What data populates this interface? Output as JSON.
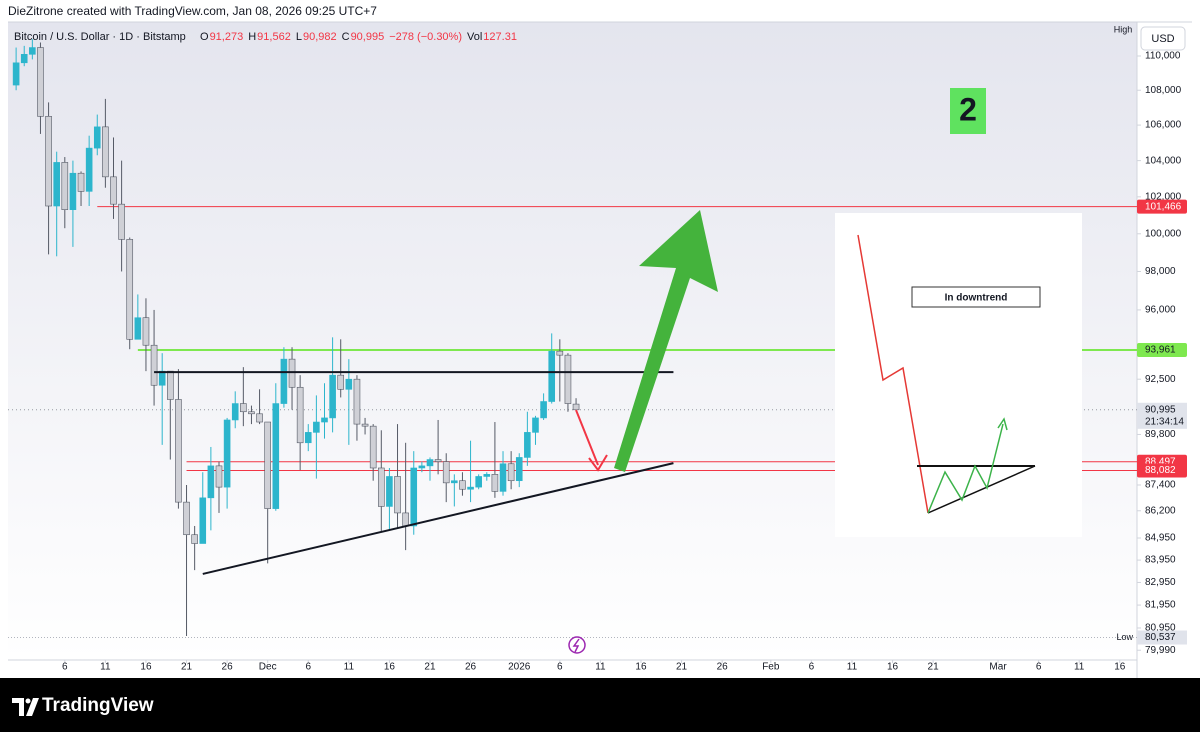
{
  "chart_data": {
    "type": "candlestick",
    "title": "DieZitrone created with TradingView.com, Jan 08, 2026 09:25 UTC+7",
    "symbol": "Bitcoin / U.S. Dollar · 1D · Bitstamp",
    "legend_values": [
      {
        "label": "O",
        "text": "91,273"
      },
      {
        "label": "H",
        "text": "91,562"
      },
      {
        "label": "L",
        "text": "90,982"
      },
      {
        "label": "C",
        "text": "90,995"
      },
      {
        "label": "",
        "text": "−278 (−0.30%)"
      },
      {
        "label": "Vol",
        "text": "127.31"
      }
    ],
    "currency": "USD",
    "high_label": "High",
    "low_marker": {
      "label": "Low",
      "value": 80537,
      "value_label": "80,537"
    },
    "log_scale": true,
    "grid": false,
    "up_color": "#2cb5cc",
    "down_color": "#cfd0d6",
    "x": [
      "2025-10-31",
      "2025-11-01",
      "2025-11-02",
      "2025-11-03",
      "2025-11-04",
      "2025-11-05",
      "2025-11-06",
      "2025-11-07",
      "2025-11-08",
      "2025-11-09",
      "2025-11-10",
      "2025-11-11",
      "2025-11-12",
      "2025-11-13",
      "2025-11-14",
      "2025-11-15",
      "2025-11-16",
      "2025-11-17",
      "2025-11-18",
      "2025-11-19",
      "2025-11-20",
      "2025-11-21",
      "2025-11-22",
      "2025-11-23",
      "2025-11-24",
      "2025-11-25",
      "2025-11-26",
      "2025-11-27",
      "2025-11-28",
      "2025-11-29",
      "2025-11-30",
      "2025-12-01",
      "2025-12-02",
      "2025-12-03",
      "2025-12-04",
      "2025-12-05",
      "2025-12-06",
      "2025-12-07",
      "2025-12-08",
      "2025-12-09",
      "2025-12-10",
      "2025-12-11",
      "2025-12-12",
      "2025-12-13",
      "2025-12-14",
      "2025-12-15",
      "2025-12-16",
      "2025-12-17",
      "2025-12-18",
      "2025-12-19",
      "2025-12-20",
      "2025-12-21",
      "2025-12-22",
      "2025-12-23",
      "2025-12-24",
      "2025-12-25",
      "2025-12-26",
      "2025-12-27",
      "2025-12-28",
      "2025-12-29",
      "2025-12-30",
      "2025-12-31",
      "2026-01-01",
      "2026-01-02",
      "2026-01-03",
      "2026-01-04",
      "2026-01-05",
      "2026-01-06",
      "2026-01-07",
      "2026-01-08"
    ],
    "open": [
      108300,
      109600,
      110100,
      110500,
      106500,
      101500,
      103900,
      101300,
      103300,
      102300,
      104700,
      105900,
      103100,
      101600,
      99700,
      94500,
      95600,
      94200,
      92200,
      92900,
      91500,
      86600,
      85100,
      84700,
      86800,
      88300,
      87300,
      90500,
      91300,
      90900,
      90800,
      90400,
      86300,
      91300,
      93500,
      92100,
      89400,
      89900,
      90400,
      90600,
      92700,
      92000,
      92500,
      90300,
      90200,
      88200,
      86400,
      87800,
      86100,
      85500,
      88200,
      88300,
      88600,
      88500,
      87500,
      87600,
      87200,
      87300,
      87800,
      87900,
      87100,
      88400,
      87600,
      88700,
      89900,
      90600,
      91400,
      93900,
      93700,
      91273
    ],
    "high": [
      110500,
      110600,
      111000,
      110800,
      107300,
      104500,
      104200,
      104000,
      103400,
      105400,
      106600,
      107500,
      105300,
      104000,
      99800,
      96800,
      96600,
      96000,
      93800,
      92900,
      93000,
      87400,
      85500,
      88000,
      89200,
      88500,
      90600,
      91900,
      93100,
      91200,
      92000,
      90400,
      92300,
      94100,
      94100,
      92700,
      90300,
      91700,
      92300,
      94600,
      94500,
      93500,
      92700,
      90600,
      90300,
      90000,
      88200,
      90300,
      89400,
      89000,
      88500,
      88700,
      90500,
      88900,
      87900,
      88000,
      89500,
      87900,
      88000,
      90400,
      89000,
      89000,
      88900,
      90900,
      90700,
      91800,
      94800,
      94500,
      93800,
      91562
    ],
    "low": [
      108000,
      109400,
      109800,
      105500,
      98900,
      98800,
      100300,
      99300,
      101500,
      101500,
      104300,
      102500,
      100800,
      98000,
      94000,
      94600,
      92900,
      91200,
      89300,
      88600,
      86300,
      80600,
      83500,
      84700,
      85300,
      86100,
      86300,
      90100,
      90200,
      90300,
      90300,
      83800,
      86200,
      91100,
      91000,
      88100,
      89000,
      87700,
      89600,
      89900,
      91600,
      89300,
      89500,
      89800,
      87600,
      85200,
      85300,
      85400,
      84400,
      85100,
      88000,
      87600,
      87900,
      86600,
      86400,
      86900,
      86600,
      87200,
      87600,
      86800,
      86900,
      87200,
      87300,
      88300,
      89300,
      90500,
      91300,
      91400,
      90900,
      90982
    ],
    "close": [
      109600,
      110100,
      110500,
      106500,
      101500,
      103900,
      101300,
      103300,
      102300,
      104700,
      105900,
      103100,
      101600,
      99700,
      94500,
      95600,
      94200,
      92200,
      92900,
      91500,
      86600,
      85100,
      84700,
      86800,
      88300,
      87300,
      90500,
      91300,
      90900,
      90800,
      90400,
      86300,
      91300,
      93500,
      92100,
      89400,
      89900,
      90400,
      90600,
      92700,
      92000,
      92500,
      90300,
      90200,
      88200,
      86400,
      87800,
      86100,
      85500,
      88200,
      88300,
      88600,
      88500,
      87500,
      87600,
      87200,
      87300,
      87800,
      87900,
      87100,
      88400,
      87600,
      88700,
      89900,
      90600,
      91400,
      93900,
      93700,
      91300,
      90995
    ],
    "xlim": [
      "2025-10-30",
      "2026-03-18"
    ],
    "xticks": [
      {
        "value": "2025-11-06",
        "label": "6"
      },
      {
        "value": "2025-11-11",
        "label": "11"
      },
      {
        "value": "2025-11-16",
        "label": "16"
      },
      {
        "value": "2025-11-21",
        "label": "21"
      },
      {
        "value": "2025-11-26",
        "label": "26"
      },
      {
        "value": "2025-12-01",
        "label": "Dec"
      },
      {
        "value": "2025-12-06",
        "label": "6"
      },
      {
        "value": "2025-12-11",
        "label": "11"
      },
      {
        "value": "2025-12-16",
        "label": "16"
      },
      {
        "value": "2025-12-21",
        "label": "21"
      },
      {
        "value": "2025-12-26",
        "label": "26"
      },
      {
        "value": "2026-01-01",
        "label": "2026"
      },
      {
        "value": "2026-01-06",
        "label": "6"
      },
      {
        "value": "2026-01-11",
        "label": "11"
      },
      {
        "value": "2026-01-16",
        "label": "16"
      },
      {
        "value": "2026-01-21",
        "label": "21"
      },
      {
        "value": "2026-01-26",
        "label": "26"
      },
      {
        "value": "2026-02-01",
        "label": "Feb"
      },
      {
        "value": "2026-02-06",
        "label": "6"
      },
      {
        "value": "2026-02-11",
        "label": "11"
      },
      {
        "value": "2026-02-16",
        "label": "16"
      },
      {
        "value": "2026-02-21",
        "label": "21"
      },
      {
        "value": "2026-03-01",
        "label": "Mar"
      },
      {
        "value": "2026-03-06",
        "label": "6"
      },
      {
        "value": "2026-03-11",
        "label": "11"
      },
      {
        "value": "2026-03-16",
        "label": "16"
      }
    ],
    "ylim": [
      79572,
      112024
    ],
    "yticks": [
      {
        "value": 110000,
        "label": "110,000"
      },
      {
        "value": 108000,
        "label": "108,000"
      },
      {
        "value": 106000,
        "label": "106,000"
      },
      {
        "value": 104000,
        "label": "104,000"
      },
      {
        "value": 102000,
        "label": "102,000"
      },
      {
        "value": 100000,
        "label": "100,000"
      },
      {
        "value": 98000,
        "label": "98,000"
      },
      {
        "value": 96000,
        "label": "96,000"
      },
      {
        "value": 92500,
        "label": "92,500"
      },
      {
        "value": 89800,
        "label": "89,800"
      },
      {
        "value": 87400,
        "label": "87,400"
      },
      {
        "value": 86200,
        "label": "86,200"
      },
      {
        "value": 84950,
        "label": "84,950"
      },
      {
        "value": 83950,
        "label": "83,950"
      },
      {
        "value": 82950,
        "label": "82,950"
      },
      {
        "value": 81950,
        "label": "81,950"
      },
      {
        "value": 80950,
        "label": "80,950"
      },
      {
        "value": 79990,
        "label": "79,990"
      }
    ],
    "horizontal_lines": [
      {
        "value": 101466,
        "label": "101,466",
        "color": "#f23645",
        "start": "2025-11-10",
        "text_color": "#ffffff"
      },
      {
        "value": 93961,
        "label": "93,961",
        "color": "#7ee84f",
        "start": "2025-11-15",
        "text_color": "#131722"
      },
      {
        "value": 88497,
        "label": "88,497",
        "color": "#f23645",
        "start": "2025-11-21",
        "text_color": "#ffffff"
      },
      {
        "value": 88082,
        "label": "88,082",
        "color": "#f23645",
        "start": "2025-11-21",
        "text_color": "#ffffff"
      }
    ],
    "trendlines": [
      {
        "x": [
          "2025-11-17",
          "2026-01-20"
        ],
        "y": [
          92850,
          92850
        ],
        "color": "#131722"
      },
      {
        "x": [
          "2025-11-23",
          "2026-01-20"
        ],
        "y": [
          83330,
          88430
        ],
        "color": "#131722"
      }
    ],
    "current_price": {
      "value": 90995,
      "label": "90,995",
      "countdown": "21:34:14"
    },
    "annotation_number": "2",
    "inset_label": "In downtrend",
    "footer_logo": "TradingView"
  }
}
